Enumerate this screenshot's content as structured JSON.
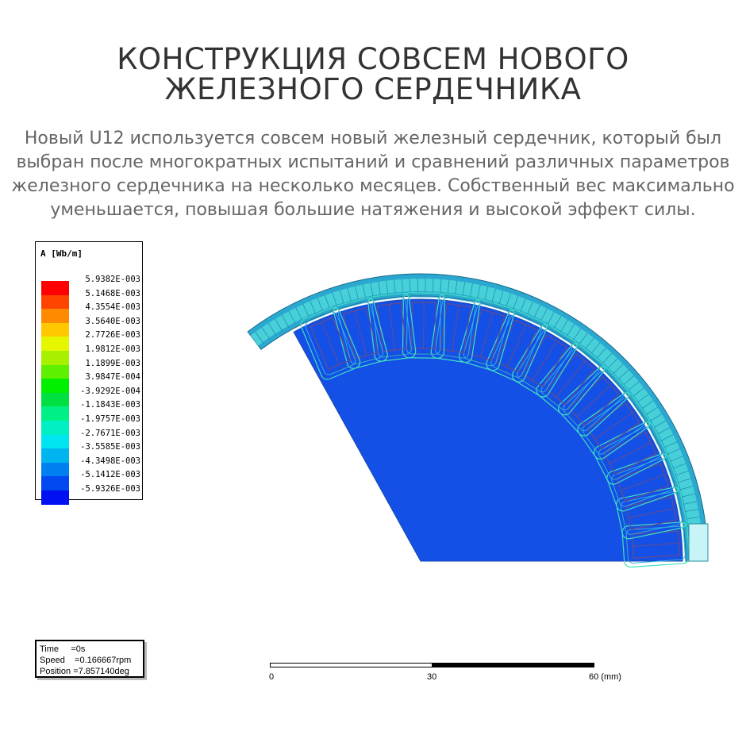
{
  "header": {
    "title_line1": "КОНСТРУКЦИЯ СОВСЕМ НОВОГО",
    "title_line2": "ЖЕЛЕЗНОГО СЕРДЕЧНИКА",
    "description_lines": [
      "Новый U12 используется  совсем новый железный сердечник, который был",
      "выбран после многократных испытаний и сравнений различных параметров",
      "железного сердечника на несколько месяцев. Собственный вес максимально",
      "уменьшается, повышая большие натяжения и высокой эффект силы."
    ]
  },
  "legend": {
    "title": "A [Wb/m]",
    "entries": [
      {
        "label": "5.9382E-003",
        "color": "#ff0000"
      },
      {
        "label": "5.1468E-003",
        "color": "#ff4400"
      },
      {
        "label": "4.3554E-003",
        "color": "#ff8a00"
      },
      {
        "label": "3.5640E-003",
        "color": "#ffc800"
      },
      {
        "label": "2.7726E-003",
        "color": "#e6f500"
      },
      {
        "label": "1.9812E-003",
        "color": "#a6f000"
      },
      {
        "label": "1.1899E-003",
        "color": "#5ef000"
      },
      {
        "label": "3.9847E-004",
        "color": "#00f000"
      },
      {
        "label": "-3.9292E-004",
        "color": "#00e040"
      },
      {
        "label": "-1.1843E-003",
        "color": "#00f088"
      },
      {
        "label": "-1.9757E-003",
        "color": "#00f0c4"
      },
      {
        "label": "-2.7671E-003",
        "color": "#00e6f0"
      },
      {
        "label": "-3.5585E-003",
        "color": "#00b4f0"
      },
      {
        "label": "-4.3498E-003",
        "color": "#0080f0"
      },
      {
        "label": "-5.1412E-003",
        "color": "#0048f0"
      },
      {
        "label": "-5.9326E-003",
        "color": "#0010f0"
      }
    ]
  },
  "info": {
    "time": "Time     =0s",
    "speed": "Speed    =0.166667rpm",
    "position": "Position =7.857140deg"
  },
  "scale_bar": {
    "tick0": "0",
    "tick1": "30",
    "tick2": "60 (mm)"
  },
  "colors": {
    "rotor_fill": "#1450e6",
    "ring": "#30c0d8",
    "slot_outline": "#6a4a8a",
    "field_line": "#40e0c0"
  }
}
